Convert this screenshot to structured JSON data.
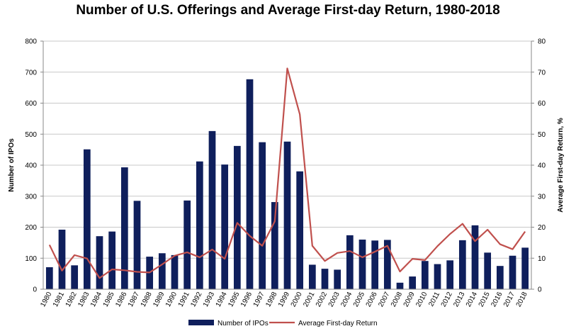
{
  "chart_data": {
    "type": "bar",
    "title": "Number of U.S. Offerings and Average First-day Return, 1980-2018",
    "categories": [
      "1980",
      "1981",
      "1982",
      "1983",
      "1984",
      "1985",
      "1986",
      "1987",
      "1988",
      "1989",
      "1990",
      "1991",
      "1992",
      "1993",
      "1994",
      "1995",
      "1996",
      "1997",
      "1998",
      "1999",
      "2000",
      "2001",
      "2002",
      "2003",
      "2004",
      "2005",
      "2006",
      "2007",
      "2008",
      "2009",
      "2010",
      "2011",
      "2012",
      "2013",
      "2014",
      "2015",
      "2016",
      "2017",
      "2018"
    ],
    "series": [
      {
        "name": "Number of IPOs",
        "type": "bar",
        "axis": "left",
        "color": "#0f1f5c",
        "values": [
          71,
          192,
          77,
          451,
          171,
          186,
          393,
          285,
          105,
          116,
          110,
          286,
          412,
          510,
          402,
          462,
          677,
          474,
          281,
          476,
          380,
          79,
          66,
          63,
          174,
          160,
          157,
          159,
          21,
          41,
          91,
          81,
          93,
          158,
          206,
          118,
          75,
          108,
          134
        ]
      },
      {
        "name": "Average First-day Return",
        "type": "line",
        "axis": "right",
        "color": "#c0504d",
        "values": [
          14.3,
          6.0,
          11.0,
          9.9,
          3.6,
          6.4,
          6.1,
          5.6,
          5.4,
          8.0,
          10.8,
          11.9,
          10.3,
          12.8,
          9.8,
          21.4,
          17.2,
          14.0,
          21.9,
          71.2,
          56.4,
          14.0,
          9.1,
          11.7,
          12.3,
          10.3,
          12.1,
          14.0,
          5.7,
          9.8,
          9.4,
          13.9,
          17.8,
          21.1,
          15.5,
          19.2,
          14.5,
          12.9,
          18.6
        ]
      }
    ],
    "ylabel": "Number of IPOs",
    "ylim": [
      0,
      800
    ],
    "y_ticks": [
      0,
      100,
      200,
      300,
      400,
      500,
      600,
      700,
      800
    ],
    "y2label": "Average First-day Return, %",
    "y2lim": [
      0,
      80
    ],
    "y2_ticks": [
      0,
      10,
      20,
      30,
      40,
      50,
      60,
      70,
      80
    ],
    "grid": true,
    "legend": "bottom"
  }
}
